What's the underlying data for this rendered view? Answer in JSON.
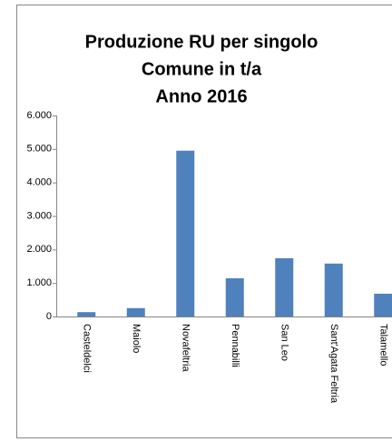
{
  "chart_data": {
    "type": "bar",
    "title": [
      "Produzione RU per singolo",
      "Comune in t/a",
      "Anno 2016"
    ],
    "categories": [
      "Casteldelci",
      "Maiolo",
      "Novafeltria",
      "Pennabilli",
      "San Leo",
      "Sant'Agata Feltria",
      "Talamello"
    ],
    "values": [
      130,
      250,
      4950,
      1140,
      1740,
      1580,
      680
    ],
    "color": "#4f81bd",
    "ylim": [
      0,
      6000
    ],
    "yticks": [
      0,
      {
        "value": 1000,
        "label": "1.000"
      },
      {
        "value": 2000,
        "label": "2.000"
      },
      {
        "value": 3000,
        "label": "3.000"
      },
      {
        "value": 4000,
        "label": "4.000"
      },
      {
        "value": 5000,
        "label": "5.000"
      },
      {
        "value": 6000,
        "label": "6.000"
      }
    ],
    "grid": false
  }
}
